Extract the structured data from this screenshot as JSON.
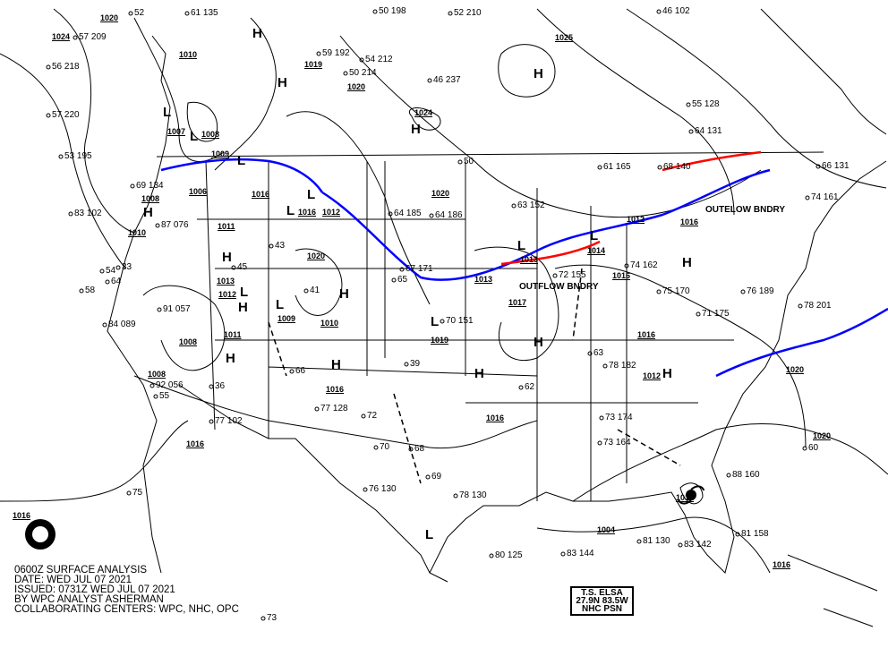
{
  "caption": {
    "line1": "0600Z SURFACE ANALYSIS",
    "line2": "DATE: WED JUL 07 2021",
    "line3": "ISSUED: 0731Z WED JUL 07 2021",
    "line4": "BY WPC ANALYST ASHERMAN",
    "line5": "COLLABORATING CENTERS: WPC, NHC, OPC"
  },
  "storm_box": {
    "line1": "T.S. ELSA",
    "line2": "27.9N 83.5W",
    "line3": "NHC PSN"
  },
  "front_labels": [
    "OUTELOW BNDRY",
    "OUTFLOW BNDRY"
  ],
  "pressure_centers": [
    "H",
    "H",
    "H",
    "H",
    "H",
    "H",
    "H",
    "H",
    "H",
    "H",
    "H",
    "H",
    "H",
    "H",
    "L",
    "L",
    "L",
    "L",
    "L",
    "L",
    "L",
    "L",
    "L",
    "L",
    "L"
  ],
  "isobar_labels": [
    "1020",
    "1024",
    "1010",
    "1007",
    "1008",
    "1009",
    "1008",
    "1006",
    "1011",
    "1010",
    "1013",
    "1012",
    "1009",
    "1010",
    "1011",
    "1008",
    "1008",
    "1016",
    "1016",
    "1016",
    "1012",
    "1016",
    "1020",
    "1019",
    "1020",
    "1024",
    "1025",
    "1020",
    "1020",
    "1013",
    "1013",
    "1017",
    "1019",
    "1016",
    "1012",
    "1014",
    "1016",
    "1012",
    "1016",
    "1012",
    "1004",
    "1016",
    "1020",
    "1016",
    "1016"
  ],
  "station_values": [
    "52",
    "61 135",
    "50 198",
    "52 210",
    "46 102",
    "57 209",
    "56 218",
    "57 220",
    "53 195",
    "83 102",
    "59 192",
    "54 212",
    "46 237",
    "50 214",
    "55 128",
    "64 131",
    "66 131",
    "74 161",
    "87 076",
    "69 134",
    "64 185",
    "64 186",
    "63 152",
    "61 165",
    "68 140",
    "78 201",
    "84 089",
    "91 057",
    "67 171",
    "70 151",
    "72 155",
    "74 162",
    "75 170",
    "76 189",
    "92 056",
    "77 102",
    "77 128",
    "73 174",
    "73 164",
    "71 175",
    "76 130",
    "78 130",
    "81 130",
    "83 142",
    "83 144",
    "80 125",
    "81 158",
    "88 160",
    "78 182",
    "75",
    "73",
    "72",
    "70",
    "69",
    "68",
    "66",
    "65",
    "64",
    "63",
    "62",
    "60",
    "58",
    "55",
    "54",
    "50",
    "45",
    "43",
    "41",
    "39",
    "36",
    "33"
  ],
  "colors": {
    "isobar": "#000000",
    "cold_front": "#0000ff",
    "warm_front": "#ff0000",
    "trough": "#000000"
  }
}
